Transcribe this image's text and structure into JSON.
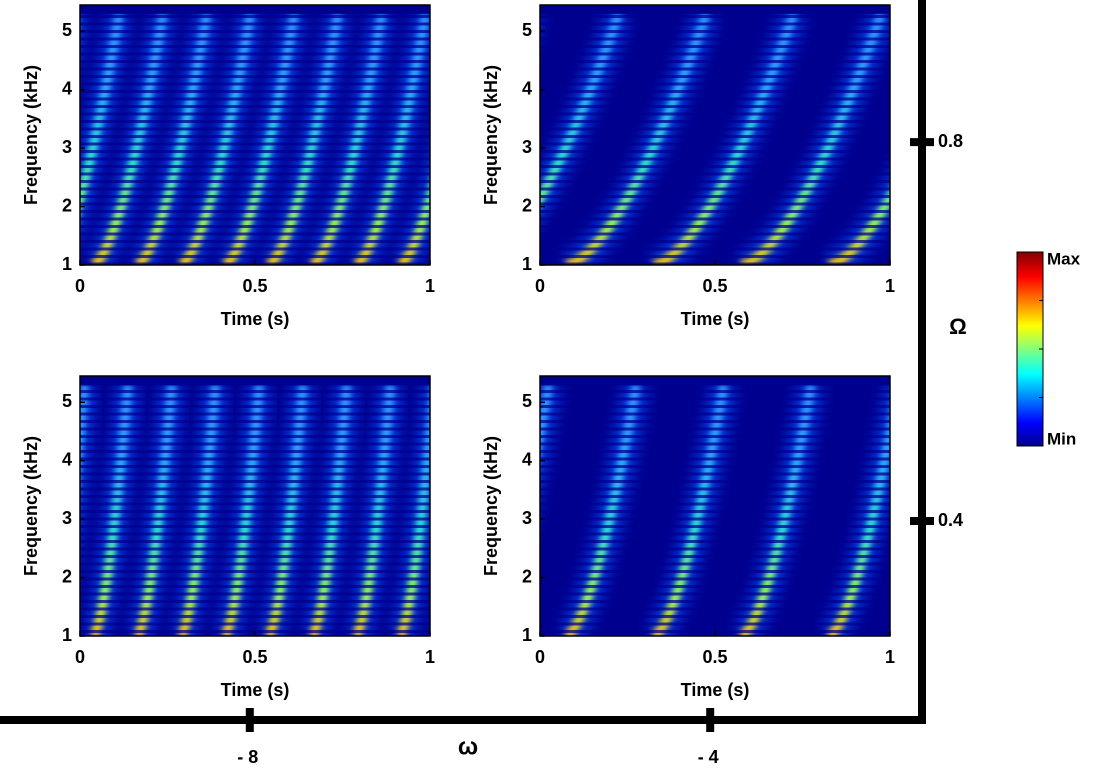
{
  "chart_data": [
    {
      "type": "spectrogram",
      "xlabel": "Time (s)",
      "ylabel": "Frequency (kHz)",
      "xlim": [
        0,
        1
      ],
      "xticks": [
        0,
        0.5,
        1
      ],
      "ylim": [
        1,
        5.45
      ],
      "yticks": [
        1,
        2,
        3,
        4,
        5
      ]
    },
    {
      "type": "spectrogram",
      "xlabel": "Time (s)",
      "ylabel": "Frequency (kHz)",
      "xlim": [
        0,
        1
      ],
      "xticks": [
        0,
        0.5,
        1
      ],
      "ylim": [
        1,
        5.45
      ],
      "yticks": [
        1,
        2,
        3,
        4,
        5
      ]
    },
    {
      "type": "spectrogram",
      "xlabel": "Time (s)",
      "ylabel": "Frequency (kHz)",
      "xlim": [
        0,
        1
      ],
      "xticks": [
        0,
        0.5,
        1
      ],
      "ylim": [
        1,
        5.45
      ],
      "yticks": [
        1,
        2,
        3,
        4,
        5
      ]
    },
    {
      "type": "spectrogram",
      "xlabel": "Time (s)",
      "ylabel": "Frequency (kHz)",
      "xlim": [
        0,
        1
      ],
      "xticks": [
        0,
        0.5,
        1
      ],
      "ylim": [
        1,
        5.45
      ],
      "yticks": [
        1,
        2,
        3,
        4,
        5
      ]
    },
    {
      "type": "axes",
      "xlabel": "ω",
      "ylabel": "Ω",
      "xlim": [
        -10.17,
        -2.16
      ],
      "xticks": [
        {
          "value": -8,
          "label": "- 8"
        },
        {
          "value": -4,
          "label": "- 4"
        }
      ],
      "ylim": [
        0.19,
        0.95
      ],
      "yticks": [
        0.8,
        0.4
      ]
    },
    {
      "type": "colorbar",
      "labels": [
        "Max",
        "Min"
      ]
    }
  ]
}
